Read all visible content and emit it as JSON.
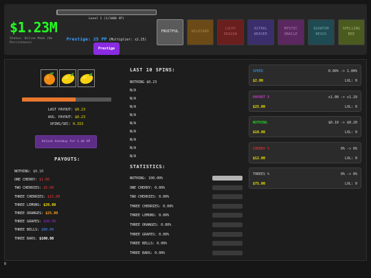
{
  "header": {
    "money": "$1.23M",
    "status": "Status: Online Mode (No Persistence)",
    "level_text": "Level 1 (1/1000 XP)",
    "level_progress": 0.01,
    "prestige_pp": "Prestige: 25 PP",
    "prestige_multiplier": "(Multiplier: x2.25)",
    "prestige_button": "Prestige"
  },
  "tabs": [
    {
      "lines": [
        "FRUITFUL"
      ],
      "bg": "#5a5a5a",
      "color": "#ffffff",
      "active": true
    },
    {
      "lines": [
        "WILDCARD"
      ],
      "bg": "#6b4a17",
      "color": "#b08a50"
    },
    {
      "lines": [
        "LUCKY",
        "DRAGON"
      ],
      "bg": "#6a1f1f",
      "color": "#b06060"
    },
    {
      "lines": [
        "ASTRAL",
        "WEAVER"
      ],
      "bg": "#3a2f6b",
      "color": "#9a8fd0"
    },
    {
      "lines": [
        "MYSTIC",
        "ORACLE"
      ],
      "bg": "#5a275e",
      "color": "#b987bd"
    },
    {
      "lines": [
        "QUANTUM",
        "NEXUS"
      ],
      "bg": "#1f4a52",
      "color": "#6fa7b0"
    },
    {
      "lines": [
        "SPELLING",
        "BEE"
      ],
      "bg": "#4b5a1f",
      "color": "#a8b874"
    }
  ],
  "reels": [
    "orange",
    "lemon",
    "lemon"
  ],
  "spin_progress": 0.6,
  "stats": {
    "last_payout_label": "LAST PAYOUT:",
    "last_payout": "$0.23",
    "avg_payout_label": "AVG. PAYOUT:",
    "avg_payout": "$0.23",
    "spins_label": "SPINS/SEC:",
    "spins_per_sec": "0.333"
  },
  "autobuy_button": "Unlock Autobuy for 1.4k XP",
  "payouts": {
    "title": "PAYOUTS:",
    "items": [
      {
        "label": "NOTHING:",
        "value": "$0.10",
        "color": "#cccccc",
        "bold": false
      },
      {
        "label": "ONE CHERRY:",
        "value": "$1.00",
        "color": "#ff3030",
        "bold": false
      },
      {
        "label": "TWO CHERRIES:",
        "value": "$5.00",
        "color": "#ff3030",
        "bold": false
      },
      {
        "label": "THREE CHERRIES:",
        "value": "$15.00",
        "color": "#ff3030",
        "bold": false
      },
      {
        "label": "THREE LEMONS:",
        "value": "$20.00",
        "color": "#ffe600",
        "bold": true
      },
      {
        "label": "THREE ORANGES:",
        "value": "$25.00",
        "color": "#ffa020",
        "bold": true
      },
      {
        "label": "THREE GRAPES:",
        "value": "$50.00",
        "color": "#a02ad0",
        "bold": false
      },
      {
        "label": "THREE BELLS:",
        "value": "$80.00",
        "color": "#4a8cff",
        "bold": false
      },
      {
        "label": "THREE BARS:",
        "value": "$100.00",
        "color": "#ffffff",
        "bold": true
      }
    ]
  },
  "last_spins": {
    "title": "LAST 10 SPINS:",
    "items": [
      "NOTHING $0.23",
      "N/A",
      "N/A",
      "N/A",
      "N/A",
      "N/A",
      "N/A",
      "N/A",
      "N/A",
      "N/A"
    ]
  },
  "statistics": {
    "title": "STATISTICS:",
    "items": [
      {
        "label": "NOTHING: 100.00%",
        "fraction": 1.0
      },
      {
        "label": "ONE CHERRY: 0.00%",
        "fraction": 0
      },
      {
        "label": "TWO CHERRIES: 0.00%",
        "fraction": 0
      },
      {
        "label": "THREE CHERRIES: 0.00%",
        "fraction": 0
      },
      {
        "label": "THREE LEMONS: 0.00%",
        "fraction": 0
      },
      {
        "label": "THREE ORANGES: 0.00%",
        "fraction": 0
      },
      {
        "label": "THREE GRAPES: 0.00%",
        "fraction": 0
      },
      {
        "label": "THREE BELLS: 0.00%",
        "fraction": 0
      },
      {
        "label": "THREE BARS: 0.00%",
        "fraction": 0
      }
    ]
  },
  "upgrades": [
    {
      "name": "SPEED",
      "color": "#3aa0ff",
      "change": "0.00% -> 1.00%",
      "cost": "$2.00",
      "level": "LVL: 0"
    },
    {
      "name": "PAYOUT X",
      "color": "#ff40ff",
      "change": "x1.00 -> x1.10",
      "cost": "$25.00",
      "level": "LVL: 0"
    },
    {
      "name": "NOTHING",
      "color": "#22ff22",
      "change": "$0.10 -> $0.20",
      "cost": "$10.00",
      "level": "LVL: 0"
    },
    {
      "name": "CHERRY %",
      "color": "#ff3030",
      "change": "0% -> 0%",
      "cost": "$12.00",
      "level": "LVL: 0"
    },
    {
      "name": "THREES %",
      "color": "#cccccc",
      "change": "0% -> 0%",
      "cost": "$75.00",
      "level": "LVL: 0"
    }
  ],
  "counter": "0"
}
